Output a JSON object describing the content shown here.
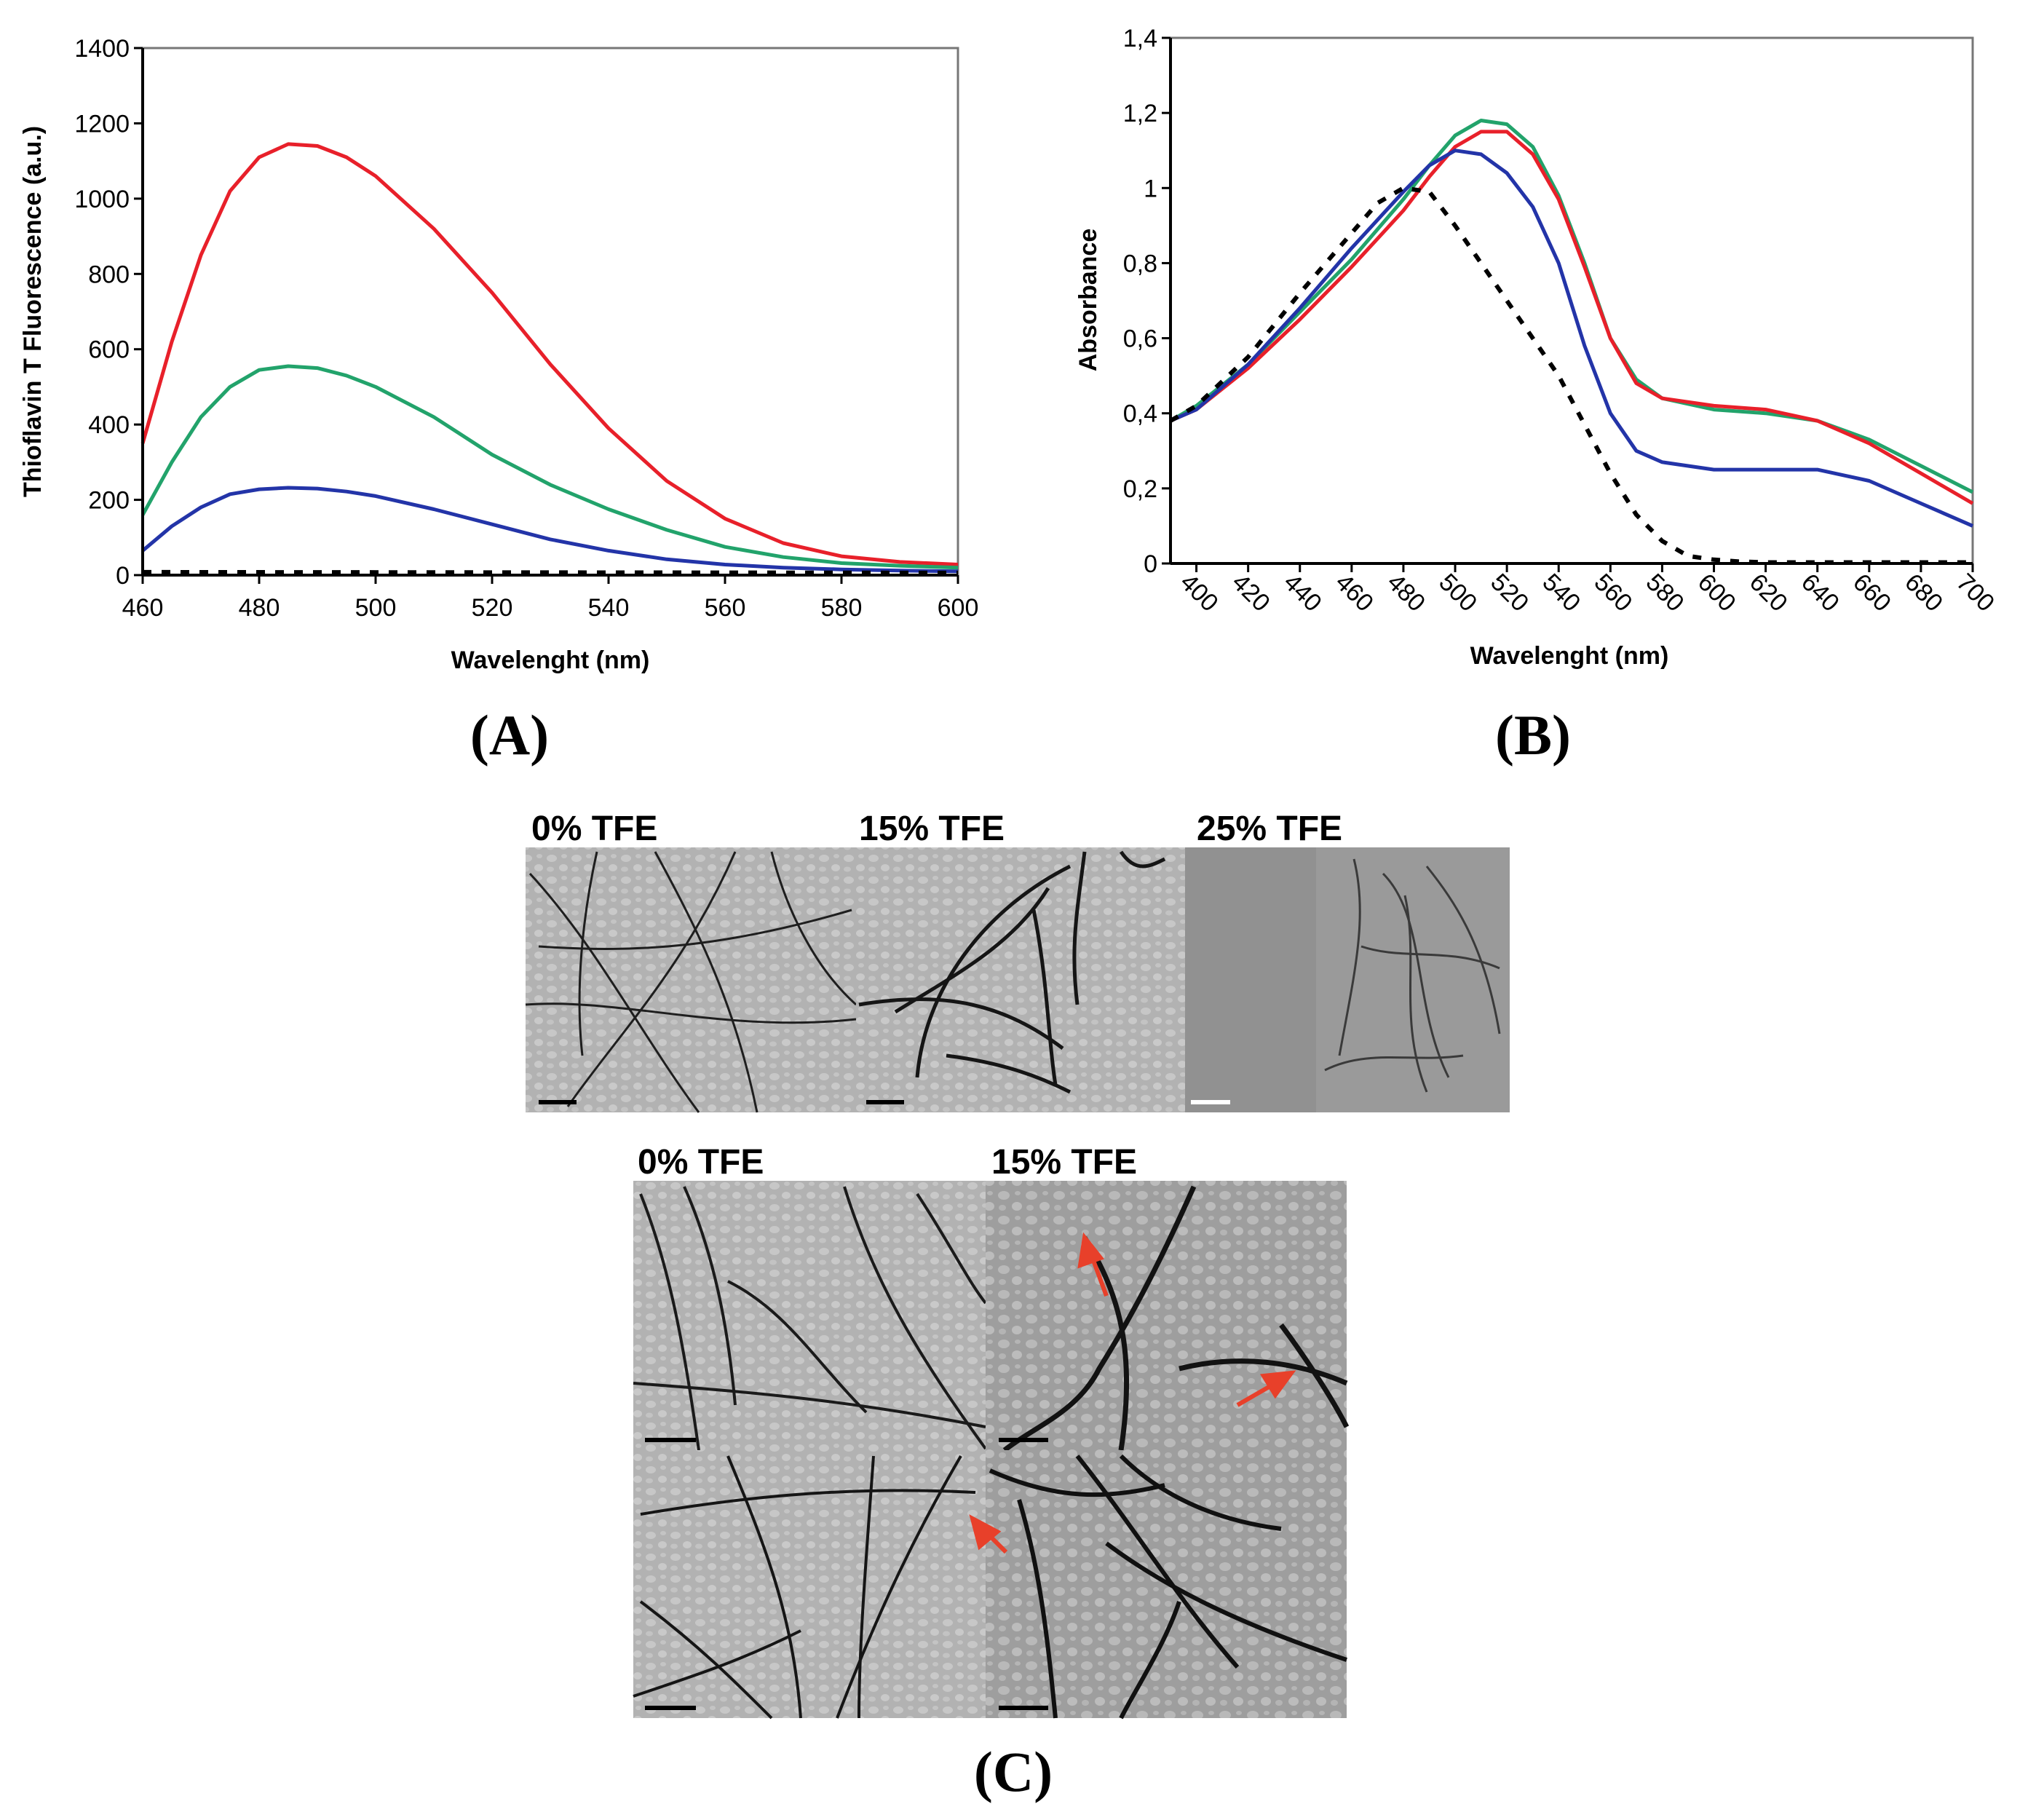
{
  "chart_data": [
    {
      "type": "line",
      "panel_label": "(A)",
      "xlabel": "Wavelenght (nm)",
      "ylabel": "Thioflavin T Fluorescence (a.u.)",
      "xlim": [
        460,
        600
      ],
      "ylim": [
        0,
        1400
      ],
      "xticks": [
        460,
        480,
        500,
        520,
        540,
        560,
        580,
        600
      ],
      "yticks": [
        0,
        200,
        400,
        600,
        800,
        1000,
        1200,
        1400
      ],
      "series": [
        {
          "name": "red",
          "color": "#e8202a",
          "style": "solid",
          "x": [
            460,
            465,
            470,
            475,
            480,
            485,
            490,
            495,
            500,
            510,
            520,
            530,
            540,
            550,
            560,
            570,
            580,
            590,
            600
          ],
          "y": [
            350,
            620,
            850,
            1020,
            1110,
            1145,
            1140,
            1110,
            1060,
            920,
            750,
            560,
            390,
            250,
            150,
            85,
            50,
            35,
            28
          ]
        },
        {
          "name": "green",
          "color": "#22a36b",
          "style": "solid",
          "x": [
            460,
            465,
            470,
            475,
            480,
            485,
            490,
            495,
            500,
            510,
            520,
            530,
            540,
            550,
            560,
            570,
            580,
            590,
            600
          ],
          "y": [
            160,
            300,
            420,
            500,
            545,
            555,
            550,
            530,
            500,
            420,
            320,
            240,
            175,
            120,
            75,
            48,
            32,
            25,
            20
          ]
        },
        {
          "name": "blue",
          "color": "#2334a8",
          "style": "solid",
          "x": [
            460,
            465,
            470,
            475,
            480,
            485,
            490,
            495,
            500,
            510,
            520,
            530,
            540,
            550,
            560,
            570,
            580,
            590,
            600
          ],
          "y": [
            65,
            130,
            180,
            215,
            228,
            232,
            230,
            222,
            210,
            175,
            135,
            95,
            65,
            42,
            28,
            20,
            15,
            12,
            10
          ]
        },
        {
          "name": "dashed",
          "color": "#000000",
          "style": "dashed",
          "x": [
            460,
            600
          ],
          "y": [
            8,
            6
          ]
        }
      ]
    },
    {
      "type": "line",
      "panel_label": "(B)",
      "xlabel": "Wavelenght (nm)",
      "ylabel": "Absorbance",
      "xlim": [
        390,
        700
      ],
      "ylim": [
        0,
        1.4
      ],
      "xticks": [
        400,
        420,
        440,
        460,
        480,
        500,
        520,
        540,
        560,
        580,
        600,
        620,
        640,
        660,
        680,
        700
      ],
      "yticks": [
        0,
        0.2,
        0.4,
        0.6,
        0.8,
        1.0,
        1.2,
        1.4
      ],
      "ytick_labels": [
        "0",
        "0,2",
        "0,4",
        "0,6",
        "0,8",
        "1",
        "1,2",
        "1,4"
      ],
      "series": [
        {
          "name": "green",
          "color": "#22a36b",
          "style": "solid",
          "x": [
            390,
            400,
            420,
            440,
            460,
            480,
            490,
            500,
            510,
            520,
            530,
            540,
            550,
            560,
            570,
            580,
            600,
            620,
            640,
            660,
            680,
            700
          ],
          "y": [
            0.38,
            0.42,
            0.53,
            0.67,
            0.81,
            0.97,
            1.06,
            1.14,
            1.18,
            1.17,
            1.11,
            0.98,
            0.8,
            0.6,
            0.49,
            0.44,
            0.41,
            0.4,
            0.38,
            0.33,
            0.26,
            0.19
          ]
        },
        {
          "name": "red",
          "color": "#e8202a",
          "style": "solid",
          "x": [
            390,
            400,
            420,
            440,
            460,
            480,
            490,
            500,
            510,
            520,
            530,
            540,
            550,
            560,
            570,
            580,
            600,
            620,
            640,
            660,
            680,
            700
          ],
          "y": [
            0.38,
            0.41,
            0.52,
            0.65,
            0.79,
            0.94,
            1.03,
            1.11,
            1.15,
            1.15,
            1.09,
            0.97,
            0.79,
            0.6,
            0.48,
            0.44,
            0.42,
            0.41,
            0.38,
            0.32,
            0.24,
            0.16
          ]
        },
        {
          "name": "blue",
          "color": "#2334a8",
          "style": "solid",
          "x": [
            390,
            400,
            420,
            440,
            460,
            480,
            490,
            500,
            510,
            520,
            530,
            540,
            550,
            560,
            570,
            580,
            600,
            620,
            640,
            660,
            680,
            700
          ],
          "y": [
            0.38,
            0.41,
            0.53,
            0.68,
            0.84,
            0.99,
            1.06,
            1.1,
            1.09,
            1.04,
            0.95,
            0.8,
            0.58,
            0.4,
            0.3,
            0.27,
            0.25,
            0.25,
            0.25,
            0.22,
            0.16,
            0.1
          ]
        },
        {
          "name": "dashed",
          "color": "#000000",
          "style": "dashed",
          "x": [
            390,
            400,
            420,
            440,
            460,
            470,
            480,
            490,
            500,
            510,
            520,
            530,
            540,
            550,
            560,
            570,
            580,
            590,
            600,
            610,
            620,
            700
          ],
          "y": [
            0.38,
            0.42,
            0.55,
            0.72,
            0.88,
            0.96,
            1.0,
            0.99,
            0.9,
            0.8,
            0.7,
            0.6,
            0.5,
            0.37,
            0.24,
            0.13,
            0.06,
            0.02,
            0.01,
            0.005,
            0.003,
            0.003
          ]
        }
      ]
    }
  ],
  "panel_c": {
    "label": "(C)",
    "top_row_labels": [
      "0% TFE",
      "15% TFE",
      "25% TFE"
    ],
    "bottom_labels": [
      "0% TFE",
      "15% TFE"
    ]
  },
  "colors": {
    "arrow": "#e8402a"
  }
}
